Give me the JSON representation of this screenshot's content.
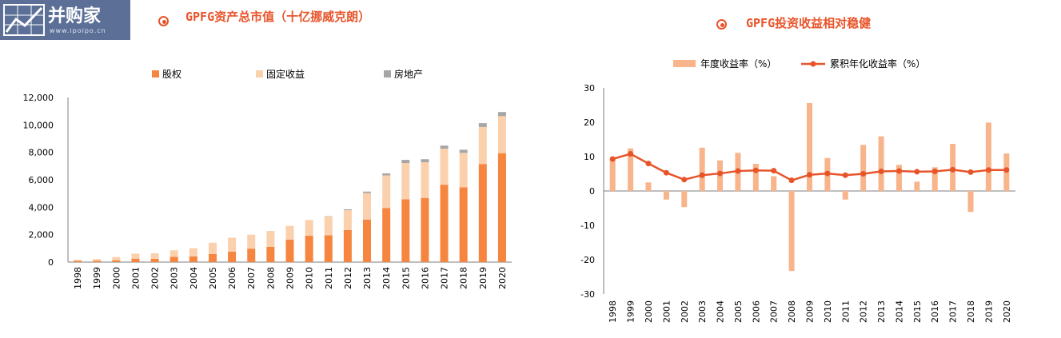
{
  "logo": {
    "text": "并购家",
    "url": "www.ipoipo.cn"
  },
  "left_title": "GPFG资产总市值（十亿挪威克朗）",
  "right_title": "GPFG投资收益相对稳健",
  "colors": {
    "equity": "#f5853f",
    "fixed": "#fbd0ad",
    "realestate": "#a6a6a6",
    "annual": "#f8b48a",
    "cumulative": "#e8542a",
    "title": "#e8542a"
  },
  "chart_data": [
    {
      "type": "bar",
      "stacked": true,
      "title": "GPFG资产总市值（十亿挪威克朗）",
      "categories": [
        "1998",
        "1999",
        "2000",
        "2001",
        "2002",
        "2003",
        "2004",
        "2005",
        "2006",
        "2007",
        "2008",
        "2009",
        "2010",
        "2011",
        "2012",
        "2013",
        "2014",
        "2015",
        "2016",
        "2017",
        "2018",
        "2019",
        "2020"
      ],
      "series": [
        {
          "name": "股权",
          "values": [
            90,
            100,
            130,
            250,
            240,
            380,
            420,
            590,
            760,
            980,
            1120,
            1630,
            1920,
            1950,
            2340,
            3100,
            3940,
            4580,
            4680,
            5640,
            5450,
            7150,
            7940
          ]
        },
        {
          "name": "固定收益",
          "values": [
            80,
            120,
            240,
            370,
            400,
            480,
            590,
            820,
            1020,
            1020,
            1150,
            1010,
            1150,
            1370,
            1440,
            1940,
            2380,
            2640,
            2600,
            2630,
            2510,
            2700,
            2700
          ]
        },
        {
          "name": "房地产",
          "values": [
            0,
            0,
            0,
            0,
            0,
            0,
            0,
            0,
            0,
            0,
            0,
            0,
            0,
            20,
            70,
            100,
            150,
            230,
            220,
            220,
            230,
            280,
            300
          ]
        }
      ],
      "ylim": [
        0,
        12000
      ],
      "yticks": [
        "0",
        "2,000",
        "4,000",
        "6,000",
        "8,000",
        "10,000",
        "12,000"
      ],
      "legend_position": "top"
    },
    {
      "type": "bar+line",
      "title": "GPFG投资收益相对稳健",
      "categories": [
        "1998",
        "1999",
        "2000",
        "2001",
        "2002",
        "2003",
        "2004",
        "2005",
        "2006",
        "2007",
        "2008",
        "2009",
        "2010",
        "2011",
        "2012",
        "2013",
        "2014",
        "2015",
        "2016",
        "2017",
        "2018",
        "2019",
        "2020"
      ],
      "series": [
        {
          "name": "年度收益率（%）",
          "type": "bar",
          "values": [
            9.3,
            12.4,
            2.5,
            -2.5,
            -4.7,
            12.6,
            8.9,
            11.1,
            7.9,
            4.3,
            -23.3,
            25.6,
            9.6,
            -2.5,
            13.4,
            15.9,
            7.6,
            2.7,
            6.9,
            13.7,
            -6.1,
            19.9,
            10.9
          ]
        },
        {
          "name": "累积年化收益率（%）",
          "type": "line",
          "values": [
            9.3,
            10.8,
            8.0,
            5.3,
            3.3,
            4.6,
            5.1,
            5.8,
            6.0,
            5.9,
            3.1,
            4.7,
            5.1,
            4.6,
            5.0,
            5.7,
            5.8,
            5.6,
            5.7,
            6.2,
            5.5,
            6.1,
            6.1
          ]
        }
      ],
      "ylim": [
        -30,
        30
      ],
      "yticks": [
        "-30",
        "-20",
        "-10",
        "0",
        "10",
        "20",
        "30"
      ],
      "legend_position": "top"
    }
  ]
}
